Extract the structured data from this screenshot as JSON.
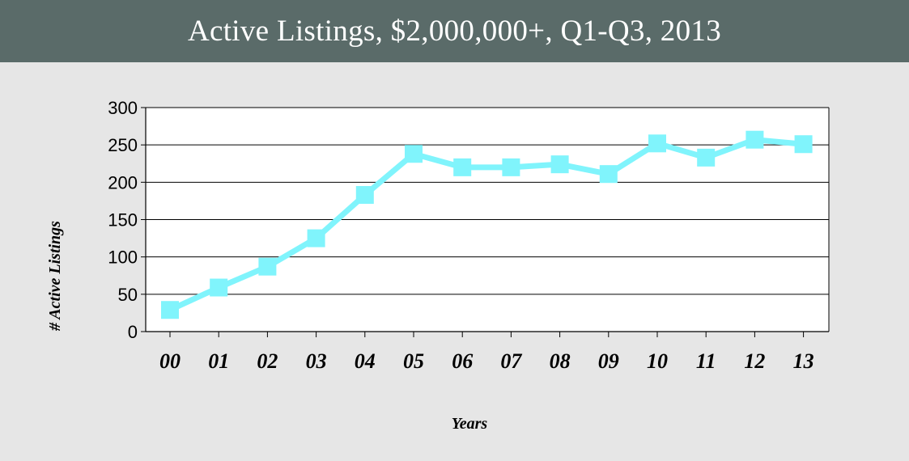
{
  "header": {
    "title": "Active Listings, $2,000,000+, Q1-Q3, 2013"
  },
  "colors": {
    "header_bg": "#5a6b69",
    "page_bg": "#e6e6e6",
    "plot_bg": "#ffffff",
    "series": "#80f4fc"
  },
  "chart_data": {
    "type": "line",
    "title": "Active Listings, $2,000,000+, Q1-Q3, 2013",
    "xlabel": "Years",
    "ylabel": "# Active Listings",
    "categories": [
      "00",
      "01",
      "02",
      "03",
      "04",
      "05",
      "06",
      "07",
      "08",
      "09",
      "10",
      "11",
      "12",
      "13"
    ],
    "series": [
      {
        "values": [
          29,
          59,
          87,
          125,
          183,
          238,
          220,
          220,
          224,
          211,
          252,
          233,
          257,
          251
        ]
      }
    ],
    "ylim": [
      0,
      300
    ],
    "yticks": [
      0,
      50,
      100,
      150,
      200,
      250,
      300
    ],
    "grid": true,
    "marker": "square",
    "legend": "none"
  }
}
